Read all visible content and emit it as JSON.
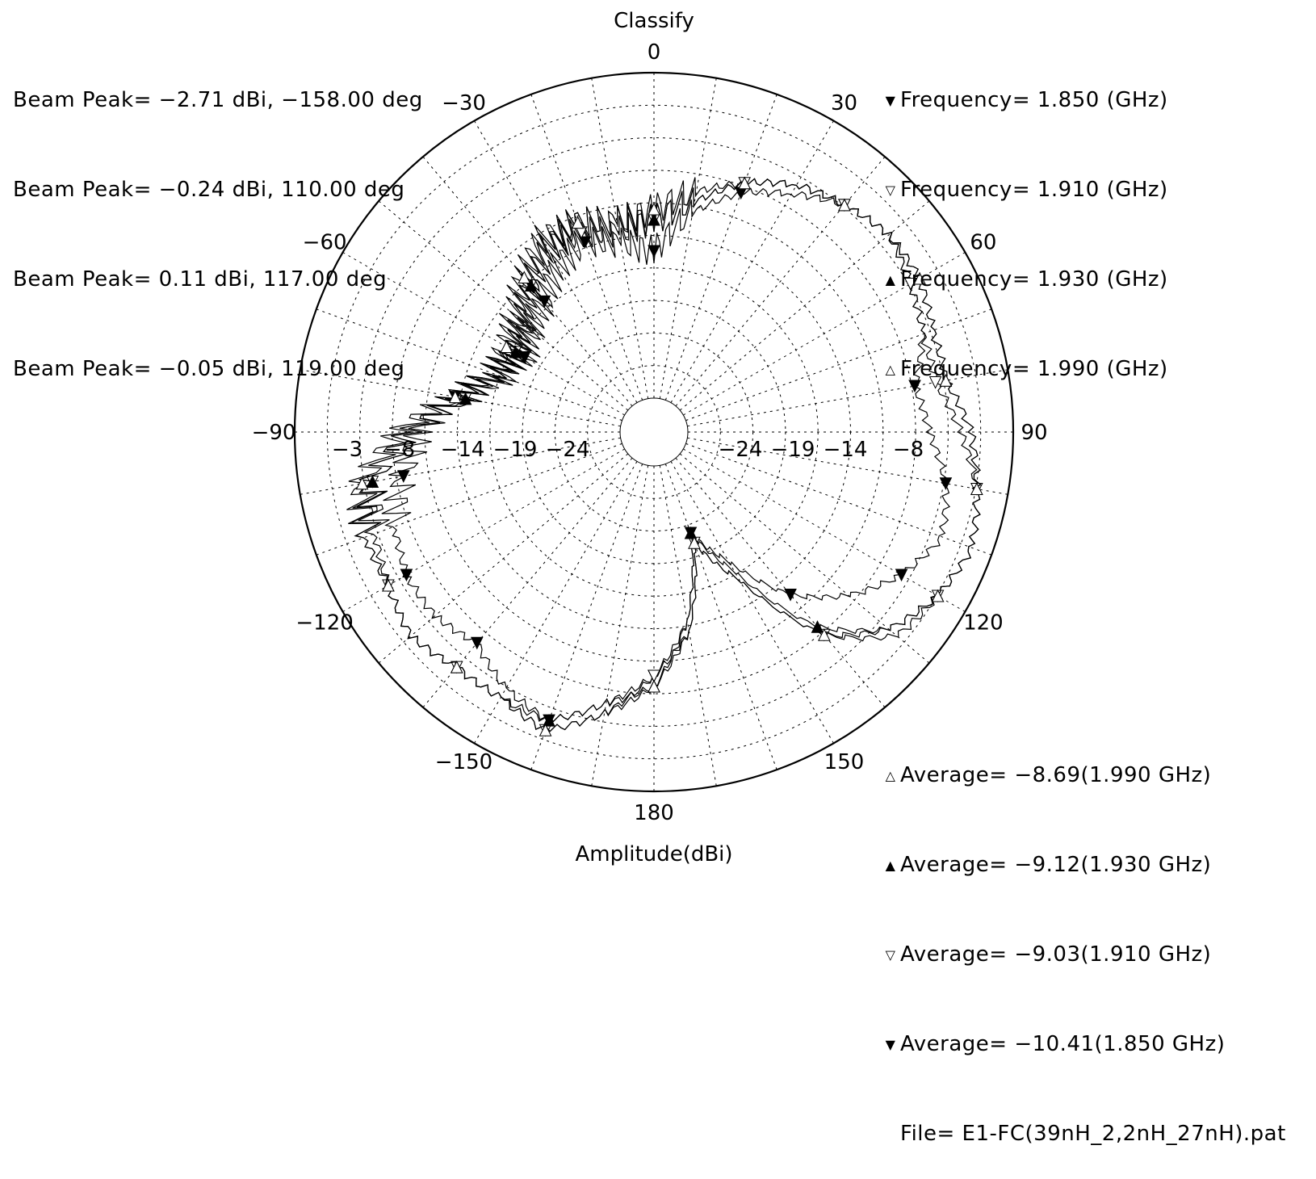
{
  "title": "Classify",
  "radial_label": "Amplitude(dBi)",
  "file_label": "File= E1-FC(39nH_2,2nH_27nH).pat",
  "beam_peaks": [
    "Beam Peak= −2.71 dBi, −158.00 deg",
    "Beam Peak= −0.24 dBi, 110.00 deg",
    "Beam Peak= 0.11 dBi, 117.00 deg",
    "Beam Peak= −0.05 dBi, 119.00 deg"
  ],
  "frequency_legend": [
    {
      "marker": "filled-down-triangle",
      "glyph": "▼",
      "label": "Frequency= 1.850 (GHz)"
    },
    {
      "marker": "open-down-triangle",
      "glyph": "▽",
      "label": "Frequency= 1.910 (GHz)"
    },
    {
      "marker": "filled-up-triangle",
      "glyph": "▲",
      "label": "Frequency= 1.930 (GHz)"
    },
    {
      "marker": "open-up-triangle",
      "glyph": "△",
      "label": "Frequency= 1.990 (GHz)"
    }
  ],
  "averages": [
    {
      "marker": "open-up-triangle",
      "glyph": "△",
      "label": "Average= −8.69(1.990 GHz)"
    },
    {
      "marker": "filled-up-triangle",
      "glyph": "▲",
      "label": "Average= −9.12(1.930 GHz)"
    },
    {
      "marker": "open-down-triangle",
      "glyph": "▽",
      "label": "Average= −9.03(1.910 GHz)"
    },
    {
      "marker": "filled-down-triangle",
      "glyph": "▼",
      "label": "Average= −10.41(1.850 GHz)"
    }
  ],
  "chart_data": {
    "type": "line",
    "subtype": "polar",
    "title": "Classify",
    "radial_label": "Amplitude(dBi)",
    "angle_unit": "deg",
    "angle_ticks": [
      0,
      30,
      60,
      90,
      120,
      150,
      180,
      -150,
      -120,
      -90,
      -60,
      -30
    ],
    "radial_tick_labels": [
      "-3",
      "-8",
      "-14",
      "-19",
      "-24"
    ],
    "rlim": [
      -29,
      2
    ],
    "grid": true,
    "series": [
      {
        "name": "Frequency= 1.850 (GHz)",
        "marker": "filled-down-triangle",
        "theta": [
          -180,
          -170,
          -160,
          -150,
          -140,
          -130,
          -120,
          -110,
          -100,
          -90,
          -80,
          -70,
          -60,
          -50,
          -40,
          -30,
          -20,
          -10,
          0,
          10,
          20,
          30,
          40,
          50,
          60,
          70,
          80,
          90,
          100,
          110,
          120,
          130,
          140,
          150,
          160,
          170,
          180
        ],
        "r": [
          -9,
          -6,
          -3,
          -4,
          -6,
          -5,
          -5,
          -6,
          -8,
          -10,
          -13,
          -16,
          -18,
          -17,
          -16,
          -14,
          -13,
          -14,
          -15,
          -11,
          -8,
          -6,
          -4,
          -3,
          -4,
          -5,
          -7,
          -6,
          -4,
          -3,
          -5,
          -8,
          -12,
          -18,
          -22,
          -14,
          -9
        ]
      },
      {
        "name": "Frequency= 1.910 (GHz)",
        "marker": "open-down-triangle",
        "theta": [
          -180,
          -170,
          -160,
          -150,
          -140,
          -130,
          -120,
          -110,
          -100,
          -90,
          -80,
          -70,
          -60,
          -50,
          -40,
          -30,
          -20,
          -10,
          0,
          10,
          20,
          30,
          40,
          50,
          60,
          70,
          80,
          90,
          100,
          110,
          120,
          130,
          140,
          150,
          160,
          170,
          180
        ],
        "r": [
          -9,
          -5,
          -2,
          -3,
          -3,
          -2,
          -3,
          -4,
          -5,
          -9,
          -14,
          -17,
          -17,
          -16,
          -14,
          -12,
          -12,
          -13,
          -12,
          -10,
          -7,
          -5,
          -4,
          -3,
          -4,
          -5,
          -5,
          -3,
          -1,
          0,
          -1,
          -2,
          -7,
          -16,
          -21,
          -13,
          -9
        ]
      },
      {
        "name": "Frequency= 1.930 (GHz)",
        "marker": "filled-up-triangle",
        "theta": [
          -180,
          -170,
          -160,
          -150,
          -140,
          -130,
          -120,
          -110,
          -100,
          -90,
          -80,
          -70,
          -60,
          -50,
          -40,
          -30,
          -20,
          -10,
          0,
          10,
          20,
          30,
          40,
          50,
          60,
          70,
          80,
          90,
          100,
          110,
          120,
          130,
          140,
          150,
          160,
          170,
          180
        ],
        "r": [
          -8,
          -6,
          -3,
          -3,
          -3,
          -2,
          -3,
          -3,
          -5,
          -9,
          -14,
          -16,
          -17,
          -16,
          -14,
          -12,
          -11,
          -12,
          -12,
          -10,
          -7,
          -5,
          -4,
          -3,
          -3,
          -4,
          -4,
          -2,
          -1,
          0,
          -1,
          -3,
          -8,
          -17,
          -22,
          -14,
          -8
        ]
      },
      {
        "name": "Frequency= 1.990 (GHz)",
        "marker": "open-up-triangle",
        "theta": [
          -180,
          -170,
          -160,
          -150,
          -140,
          -130,
          -120,
          -110,
          -100,
          -90,
          -80,
          -70,
          -60,
          -50,
          -40,
          -30,
          -20,
          -10,
          0,
          10,
          20,
          30,
          40,
          50,
          60,
          70,
          80,
          90,
          100,
          110,
          120,
          130,
          140,
          150,
          160,
          170,
          180
        ],
        "r": [
          -8,
          -5,
          -2,
          -3,
          -3,
          -2,
          -3,
          -3,
          -4,
          -8,
          -13,
          -16,
          -16,
          -15,
          -13,
          -11,
          -11,
          -12,
          -11,
          -9,
          -7,
          -5,
          -4,
          -3,
          -3,
          -4,
          -4,
          -2,
          -1,
          0,
          -1,
          -3,
          -7,
          -16,
          -21,
          -13,
          -8
        ]
      }
    ]
  }
}
